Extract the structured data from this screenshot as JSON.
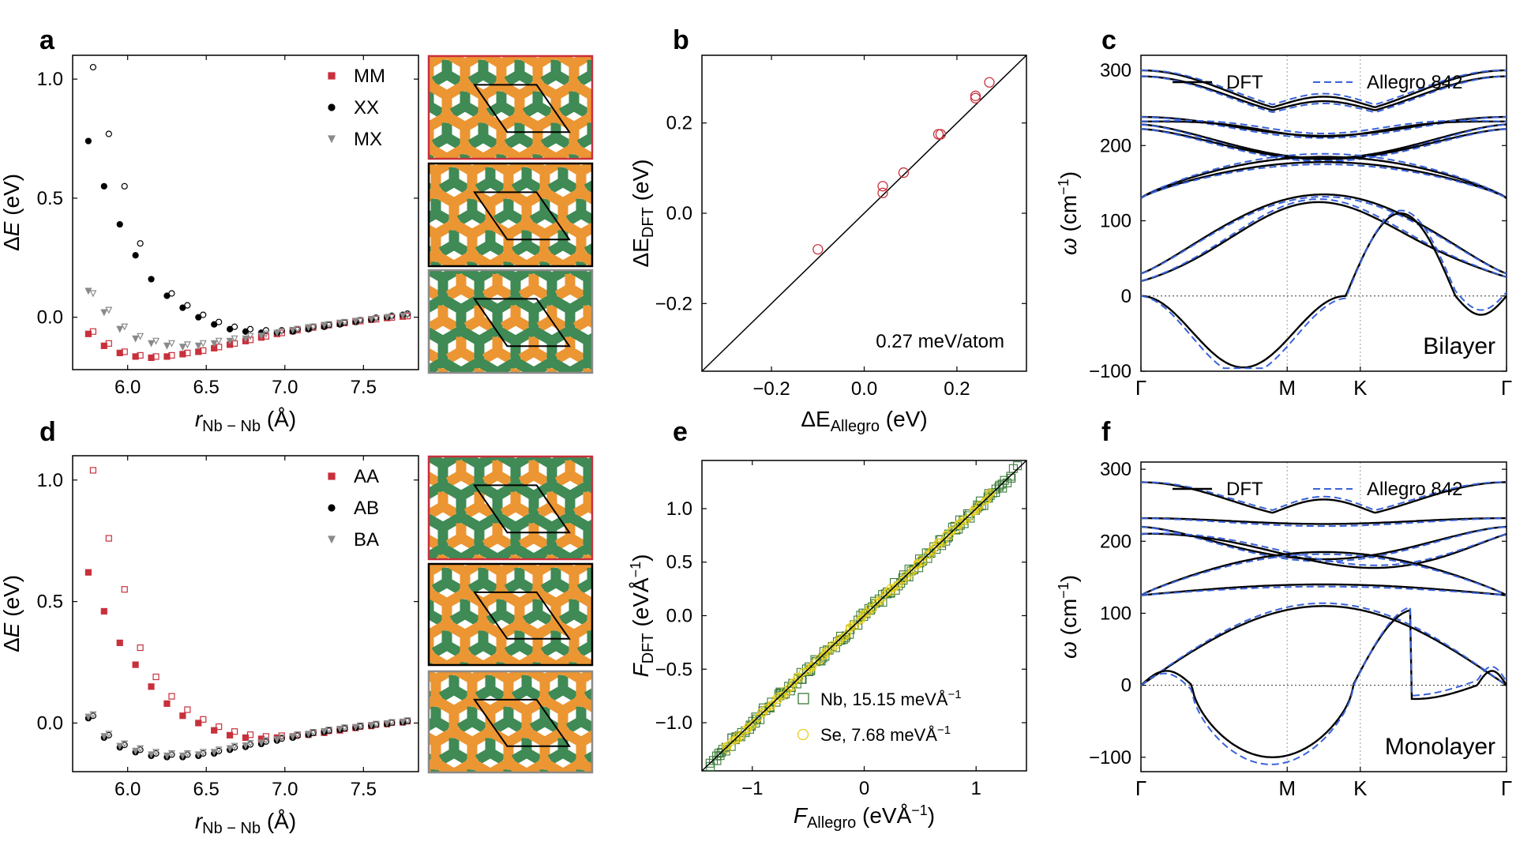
{
  "panel_labels": [
    "a",
    "b",
    "c",
    "d",
    "e",
    "f"
  ],
  "colors": {
    "red": "#c8303c",
    "black": "#000000",
    "gray": "#8a8a8a",
    "blue": "#3a62d8",
    "green": "#3c7a3a",
    "yellow": "#e6cf18",
    "nb": "#3f8a55",
    "se": "#eb9633"
  },
  "axis_labels": {
    "dE": "ΔE (eV)",
    "dE_sym": "Δ",
    "dE_var": "E",
    "dE_unit": " (eV)",
    "r_var": "r",
    "r_sub": "Nb − Nb",
    "r_unit": " (Å)",
    "b_y_base": "ΔE",
    "b_y_sub": "DFT",
    "b_y_unit": " (eV)",
    "b_x_base": "ΔE",
    "b_x_sub": "Allegro",
    "b_x_unit": " (eV)",
    "e_y_base": "F",
    "e_y_sub": "DFT",
    "e_y_unit": " (eVÅ",
    "e_x_base": "F",
    "e_x_sub": "Allegro",
    "e_x_unit": " (eVÅ",
    "inv_exp": "−1",
    "close_paren": ")",
    "omega_var": "ω",
    "omega_unit": " (cm",
    "omega_exp": "−1",
    "omega_close": ")"
  },
  "chart_data": [
    {
      "panel": "a",
      "type": "scatter",
      "xlabel": "r_Nb−Nb (Å)",
      "ylabel": "ΔE (eV)",
      "xlim": [
        5.65,
        7.85
      ],
      "ylim": [
        -0.22,
        1.1
      ],
      "xticks": [
        "6.0",
        "6.5",
        "7.0",
        "7.5"
      ],
      "xtick_values": [
        6.0,
        6.5,
        7.0,
        7.5
      ],
      "yticks": [
        "0.0",
        "0.5",
        "1.0"
      ],
      "ytick_values": [
        0.0,
        0.5,
        1.0
      ],
      "x": [
        5.75,
        5.85,
        5.95,
        6.05,
        6.15,
        6.25,
        6.35,
        6.45,
        6.55,
        6.65,
        6.75,
        6.85,
        6.95,
        7.05,
        7.15,
        7.25,
        7.35,
        7.45,
        7.55,
        7.65,
        7.75
      ],
      "series": [
        {
          "name": "MM",
          "marker": "square",
          "color": "#c8303c",
          "values": [
            -0.07,
            -0.12,
            -0.15,
            -0.165,
            -0.17,
            -0.165,
            -0.155,
            -0.145,
            -0.13,
            -0.115,
            -0.1,
            -0.085,
            -0.07,
            -0.058,
            -0.047,
            -0.037,
            -0.027,
            -0.018,
            -0.01,
            -0.003,
            0.003
          ],
          "open_values": [
            -0.06,
            -0.11,
            -0.145,
            -0.16,
            -0.165,
            -0.16,
            -0.15,
            -0.14,
            -0.125,
            -0.11,
            -0.095,
            -0.08,
            -0.066,
            -0.054,
            -0.043,
            -0.033,
            -0.024,
            -0.016,
            -0.008,
            -0.001,
            0.005
          ]
        },
        {
          "name": "XX",
          "marker": "circle",
          "color": "#000000",
          "values": [
            0.74,
            0.55,
            0.39,
            0.26,
            0.16,
            0.09,
            0.04,
            0.0,
            -0.03,
            -0.05,
            -0.06,
            -0.065,
            -0.065,
            -0.06,
            -0.05,
            -0.04,
            -0.03,
            -0.02,
            -0.01,
            0.0,
            0.01
          ],
          "open_values": [
            1.05,
            0.77,
            0.55,
            0.31,
            null,
            0.1,
            0.05,
            0.01,
            -0.02,
            -0.04,
            -0.05,
            -0.055,
            -0.055,
            -0.05,
            -0.04,
            -0.032,
            -0.022,
            -0.012,
            -0.002,
            0.006,
            0.015
          ]
        },
        {
          "name": "MX",
          "marker": "triangle",
          "color": "#8a8a8a",
          "values": [
            0.11,
            0.02,
            -0.05,
            -0.09,
            -0.11,
            -0.12,
            -0.125,
            -0.12,
            -0.11,
            -0.1,
            -0.09,
            -0.078,
            -0.066,
            -0.054,
            -0.043,
            -0.033,
            -0.024,
            -0.016,
            -0.008,
            -0.001,
            0.006
          ],
          "open_values": [
            0.1,
            0.03,
            -0.04,
            -0.08,
            -0.1,
            -0.11,
            -0.115,
            -0.11,
            -0.1,
            -0.09,
            -0.08,
            -0.07,
            -0.06,
            -0.05,
            -0.04,
            -0.03,
            -0.021,
            -0.013,
            -0.005,
            0.002,
            0.009
          ]
        }
      ],
      "legend": {
        "placement": "top-right",
        "entries": [
          "MM",
          "XX",
          "MX"
        ]
      }
    },
    {
      "panel": "b",
      "type": "scatter",
      "xlabel": "ΔE_Allegro (eV)",
      "ylabel": "ΔE_DFT (eV)",
      "xlim": [
        -0.35,
        0.35
      ],
      "ylim": [
        -0.35,
        0.35
      ],
      "xticks": [
        "−0.2",
        "0.0",
        "0.2"
      ],
      "xtick_values": [
        -0.2,
        0.0,
        0.2
      ],
      "yticks": [
        "−0.2",
        "0.0",
        "0.2"
      ],
      "ytick_values": [
        -0.2,
        0.0,
        0.2
      ],
      "points": [
        [
          -0.1,
          -0.08
        ],
        [
          0.04,
          0.045
        ],
        [
          0.04,
          0.06
        ],
        [
          0.085,
          0.09
        ],
        [
          0.16,
          0.175
        ],
        [
          0.165,
          0.175
        ],
        [
          0.24,
          0.255
        ],
        [
          0.24,
          0.26
        ],
        [
          0.27,
          0.29
        ]
      ],
      "marker": "open-circle",
      "color": "#c8303c",
      "reference_line": "y = x",
      "annotation": "0.27 meV/atom"
    },
    {
      "panel": "c",
      "type": "line",
      "ylabel": "ω (cm⁻¹)",
      "ylim": [
        -100,
        320
      ],
      "yticks": [
        "−100",
        "0",
        "100",
        "200",
        "300"
      ],
      "ytick_values": [
        -100,
        0,
        100,
        200,
        300
      ],
      "xticks": [
        "Γ",
        "M",
        "K",
        "Γ"
      ],
      "xtick_values": [
        0,
        1,
        1.5,
        2.5
      ],
      "annotation": "Bilayer",
      "legend": {
        "placement": "top",
        "entries": [
          "DFT",
          "Allegro 842"
        ]
      },
      "series": [
        {
          "name": "DFT",
          "style": "solid",
          "color": "#000000"
        },
        {
          "name": "Allegro 842",
          "style": "dashed",
          "color": "#3a62d8"
        }
      ]
    },
    {
      "panel": "d",
      "type": "scatter",
      "xlabel": "r_Nb−Nb (Å)",
      "ylabel": "ΔE (eV)",
      "xlim": [
        5.65,
        7.85
      ],
      "ylim": [
        -0.2,
        1.1
      ],
      "xticks": [
        "6.0",
        "6.5",
        "7.0",
        "7.5"
      ],
      "xtick_values": [
        6.0,
        6.5,
        7.0,
        7.5
      ],
      "yticks": [
        "0.0",
        "0.5",
        "1.0"
      ],
      "ytick_values": [
        0.0,
        0.5,
        1.0
      ],
      "x": [
        5.75,
        5.85,
        5.95,
        6.05,
        6.15,
        6.25,
        6.35,
        6.45,
        6.55,
        6.65,
        6.75,
        6.85,
        6.95,
        7.05,
        7.15,
        7.25,
        7.35,
        7.45,
        7.55,
        7.65,
        7.75
      ],
      "series": [
        {
          "name": "AA",
          "marker": "square",
          "color": "#c8303c",
          "values": [
            0.62,
            0.46,
            0.33,
            0.24,
            0.15,
            0.08,
            0.03,
            0.0,
            -0.03,
            -0.05,
            -0.06,
            -0.065,
            -0.06,
            -0.055,
            -0.048,
            -0.04,
            -0.03,
            -0.02,
            -0.012,
            -0.004,
            0.003
          ],
          "open_values": [
            1.04,
            0.76,
            0.55,
            0.31,
            0.19,
            0.11,
            0.055,
            0.015,
            -0.015,
            -0.035,
            -0.048,
            -0.055,
            -0.052,
            -0.048,
            -0.04,
            -0.032,
            -0.023,
            -0.014,
            -0.006,
            0.002,
            0.008
          ]
        },
        {
          "name": "AB",
          "marker": "circle",
          "color": "#000000",
          "values": [
            0.02,
            -0.06,
            -0.1,
            -0.12,
            -0.135,
            -0.14,
            -0.14,
            -0.135,
            -0.125,
            -0.11,
            -0.098,
            -0.086,
            -0.072,
            -0.06,
            -0.048,
            -0.037,
            -0.028,
            -0.019,
            -0.011,
            -0.004,
            0.003
          ],
          "open_values": [
            0.03,
            -0.05,
            -0.09,
            -0.11,
            -0.125,
            -0.13,
            -0.13,
            -0.125,
            -0.115,
            -0.1,
            -0.088,
            -0.076,
            -0.064,
            -0.052,
            -0.041,
            -0.031,
            -0.022,
            -0.014,
            -0.006,
            0.001,
            0.008
          ]
        },
        {
          "name": "BA",
          "marker": "triangle",
          "color": "#8a8a8a",
          "values": [
            0.025,
            -0.055,
            -0.095,
            -0.115,
            -0.13,
            -0.135,
            -0.135,
            -0.13,
            -0.12,
            -0.105,
            -0.093,
            -0.081,
            -0.068,
            -0.056,
            -0.045,
            -0.034,
            -0.025,
            -0.017,
            -0.009,
            -0.002,
            0.005
          ],
          "open_values": [
            0.035,
            -0.045,
            -0.085,
            -0.105,
            -0.12,
            -0.125,
            -0.125,
            -0.12,
            -0.11,
            -0.095,
            -0.083,
            -0.071,
            -0.06,
            -0.048,
            -0.038,
            -0.028,
            -0.019,
            -0.011,
            -0.004,
            0.003,
            0.01
          ]
        }
      ],
      "legend": {
        "placement": "top-right",
        "entries": [
          "AA",
          "AB",
          "BA"
        ]
      }
    },
    {
      "panel": "e",
      "type": "scatter",
      "xlabel": "F_Allegro (eVÅ⁻¹)",
      "ylabel": "F_DFT (eVÅ⁻¹)",
      "xlim": [
        -1.45,
        1.45
      ],
      "ylim": [
        -1.45,
        1.45
      ],
      "xticks": [
        "−1",
        "0",
        "1"
      ],
      "xtick_values": [
        -1,
        0,
        1
      ],
      "yticks": [
        "−1.0",
        "−0.5",
        "0.0",
        "0.5",
        "1.0"
      ],
      "ytick_values": [
        -1.0,
        -0.5,
        0.0,
        0.5,
        1.0
      ],
      "reference_line": "y = x",
      "series": [
        {
          "name": "Nb",
          "marker": "open-square",
          "color": "#3c7a3a",
          "error": 15.15,
          "label": "Nb, 15.15 meVÅ",
          "range": [
            -1.38,
            1.35
          ]
        },
        {
          "name": "Se",
          "marker": "open-circle",
          "color": "#e6cf18",
          "error": 7.68,
          "label": "Se, 7.68 meVÅ",
          "range": [
            -1.25,
            1.15
          ]
        }
      ],
      "legend": {
        "placement": "bottom-right",
        "entries": [
          "Nb, 15.15 meVÅ−1",
          "Se, 7.68 meVÅ−1"
        ]
      }
    },
    {
      "panel": "f",
      "type": "line",
      "ylabel": "ω (cm⁻¹)",
      "ylim": [
        -120,
        310
      ],
      "yticks": [
        "−100",
        "0",
        "100",
        "200",
        "300"
      ],
      "ytick_values": [
        -100,
        0,
        100,
        200,
        300
      ],
      "xticks": [
        "Γ",
        "M",
        "K",
        "Γ"
      ],
      "xtick_values": [
        0,
        1,
        1.5,
        2.5
      ],
      "annotation": "Monolayer",
      "legend": {
        "placement": "top",
        "entries": [
          "DFT",
          "Allegro 842"
        ]
      },
      "series": [
        {
          "name": "DFT",
          "style": "solid",
          "color": "#000000"
        },
        {
          "name": "Allegro 842",
          "style": "dashed",
          "color": "#3a62d8"
        }
      ]
    }
  ]
}
